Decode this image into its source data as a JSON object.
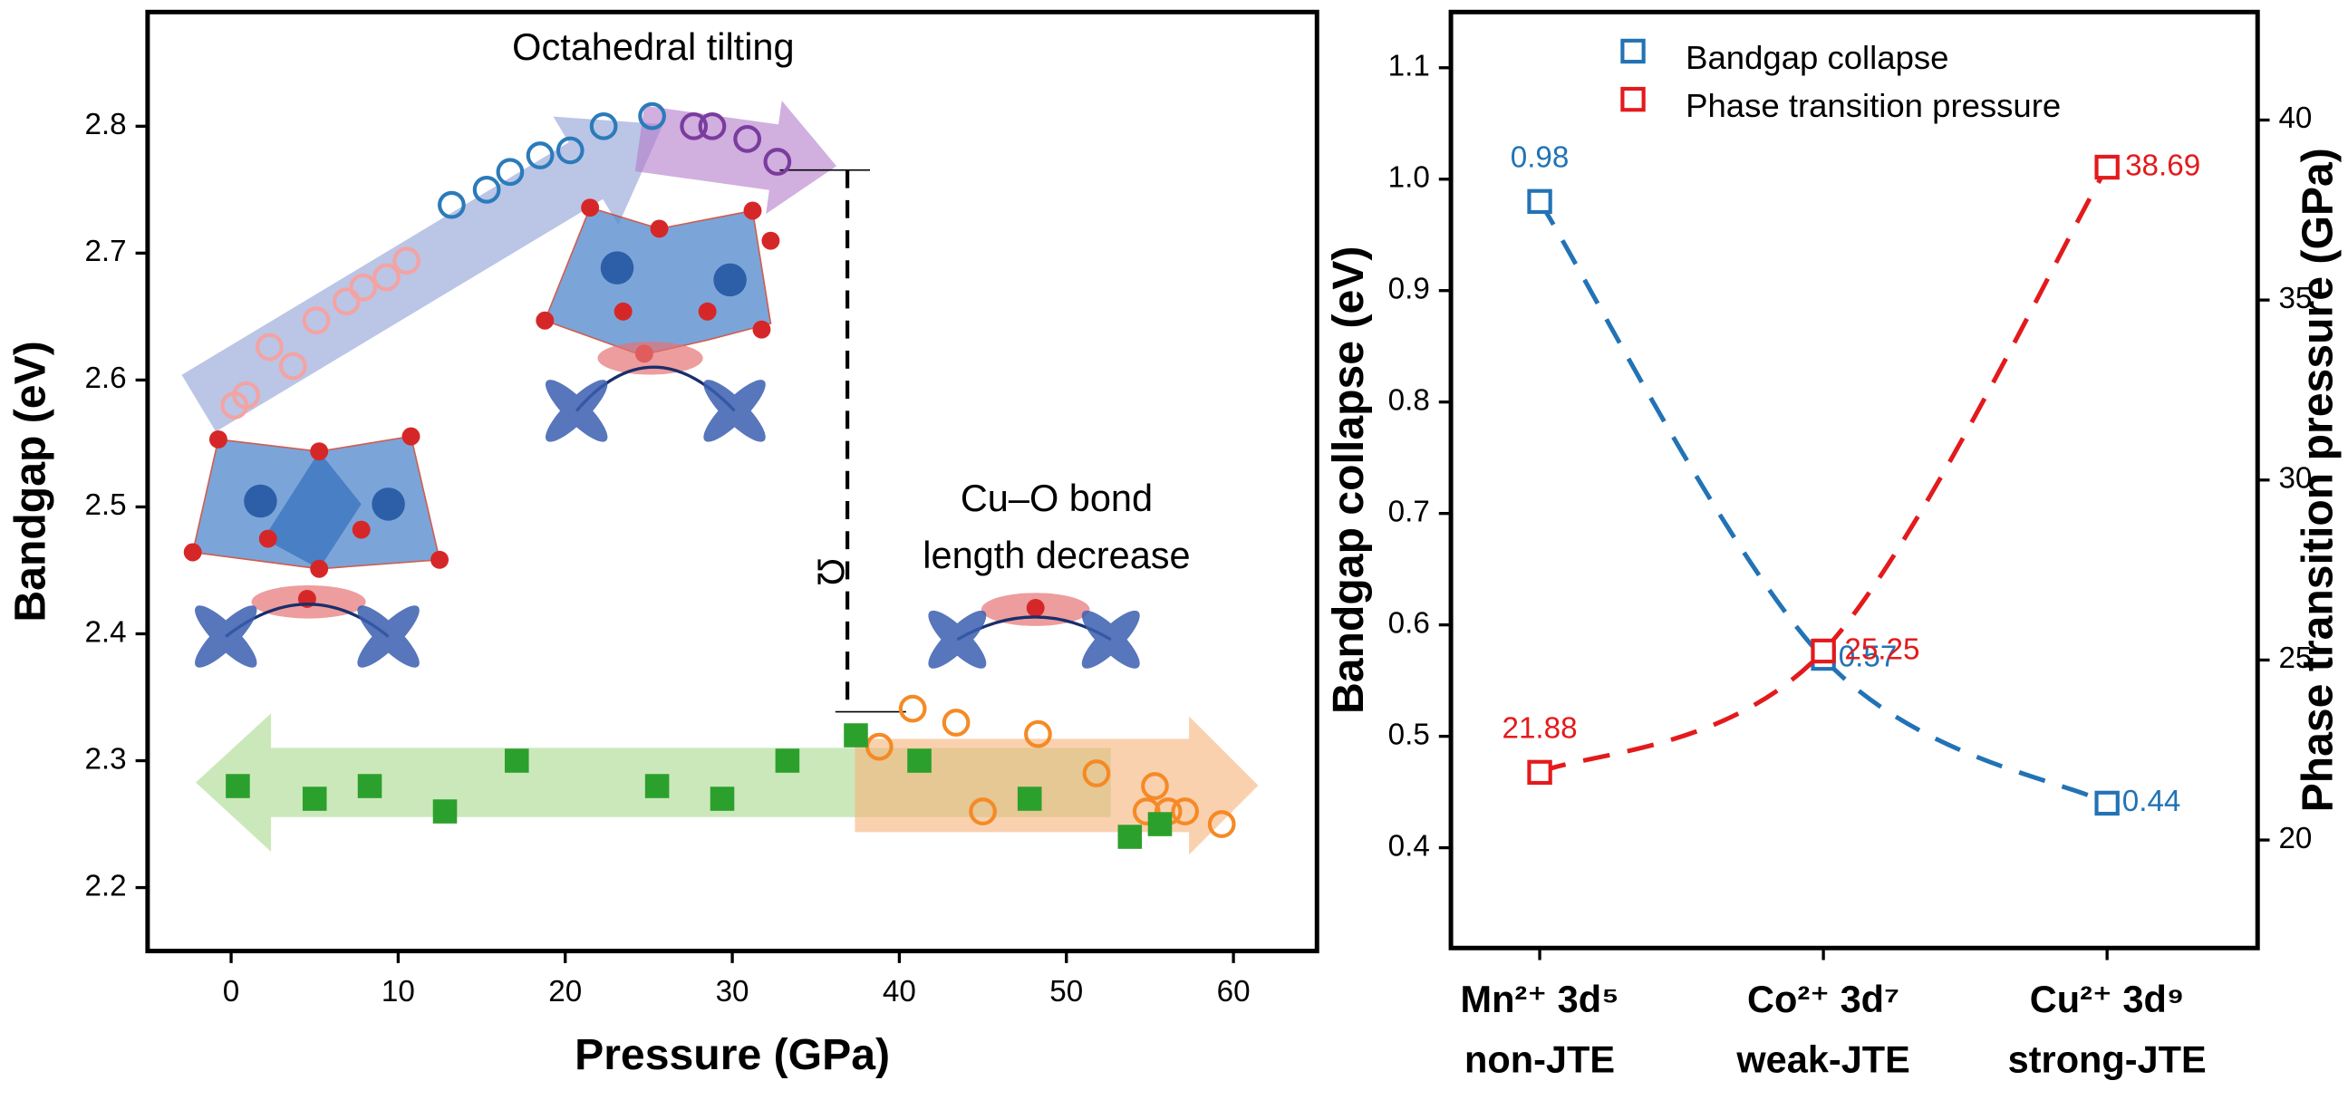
{
  "chart_data": [
    {
      "type": "scatter",
      "xlabel": "Pressure (GPa)",
      "ylabel": "Bandgap (eV)",
      "xlim": [
        -5,
        65
      ],
      "xticks": [
        0,
        10,
        20,
        30,
        40,
        50,
        60
      ],
      "ylim": [
        2.15,
        2.89
      ],
      "yticks": [
        2.2,
        2.3,
        2.4,
        2.5,
        2.6,
        2.7,
        2.8
      ],
      "annotations": [
        "Octahedral tilting",
        "Cu–O bond",
        "length decrease",
        "Ω"
      ],
      "series": [
        {
          "color": "#f4a3a3",
          "marker": "circle-open",
          "x": [
            0.2,
            0.9,
            2.3,
            3.7,
            5.1,
            6.9,
            7.9,
            9.3,
            10.5
          ],
          "values": [
            2.58,
            2.588,
            2.626,
            2.611,
            2.647,
            2.662,
            2.673,
            2.681,
            2.694
          ]
        },
        {
          "color": "#2b7bba",
          "marker": "circle-open",
          "x": [
            13.2,
            15.3,
            16.7,
            18.5,
            20.3,
            22.3,
            25.2
          ],
          "values": [
            2.738,
            2.75,
            2.764,
            2.777,
            2.781,
            2.8,
            2.808
          ]
        },
        {
          "color": "#7a3c9e",
          "marker": "circle-open",
          "x": [
            27.7,
            28.8,
            30.9,
            32.7
          ],
          "values": [
            2.8,
            2.8,
            2.79,
            2.772
          ]
        },
        {
          "color": "#f58a25",
          "marker": "circle-open",
          "x": [
            38.8,
            40.8,
            43.4,
            45.0,
            48.3,
            51.8,
            55.3,
            54.8,
            56.1,
            57.1,
            59.3
          ],
          "values": [
            2.311,
            2.341,
            2.33,
            2.26,
            2.321,
            2.29,
            2.28,
            2.26,
            2.26,
            2.26,
            2.25
          ]
        },
        {
          "color": "#2ca02c",
          "marker": "square-filled",
          "x": [
            0.4,
            5.0,
            8.3,
            12.8,
            17.1,
            25.5,
            29.4,
            33.3,
            37.4,
            41.2,
            47.8,
            53.8,
            55.6
          ],
          "values": [
            2.28,
            2.27,
            2.28,
            2.26,
            2.3,
            2.28,
            2.27,
            2.3,
            2.32,
            2.3,
            2.27,
            2.24,
            2.25
          ]
        }
      ]
    },
    {
      "type": "line",
      "categories": [
        [
          "Mn²⁺ 3d⁵",
          "non-JTE"
        ],
        [
          "Co²⁺ 3d⁷",
          "weak-JTE"
        ],
        [
          "Cu²⁺ 3d⁹",
          "strong-JTE"
        ]
      ],
      "ylabel": "Bandgap collapse (eV)",
      "y2label": "Phase transition pressure (GPa)",
      "ylim": [
        0.31,
        1.15
      ],
      "yticks": [
        0.4,
        0.5,
        0.6,
        0.7,
        0.8,
        0.9,
        {
          "value": 1,
          "label": "1.0"
        },
        1.1
      ],
      "y2lim": [
        17,
        43
      ],
      "y2ticks": [
        20,
        25,
        30,
        35,
        40
      ],
      "line_style": "dashed",
      "marker": "square-open",
      "legend": "top",
      "series": [
        {
          "name": "Bandgap collapse",
          "color": "#2273b5",
          "values": [
            0.98,
            0.57,
            0.44
          ]
        },
        {
          "name": "Phase transition pressure",
          "color": "#e31a1c",
          "axis": "y2",
          "values": [
            21.88,
            25.25,
            38.69
          ]
        }
      ]
    }
  ]
}
